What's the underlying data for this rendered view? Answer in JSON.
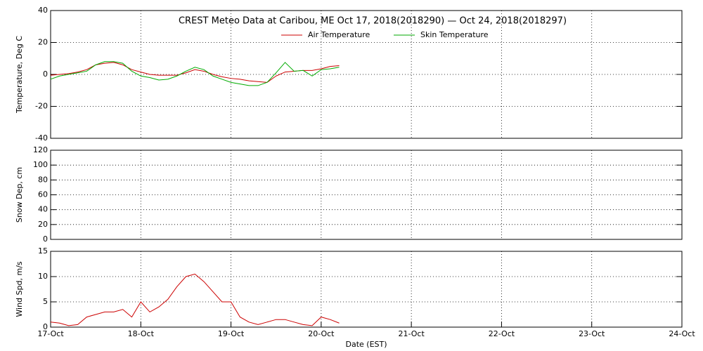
{
  "chart_data": [
    {
      "type": "line",
      "title": "CREST Meteo Data at Caribou, ME   Oct 17, 2018(2018290) — Oct 24, 2018(2018297)",
      "y_label": "Temperature, Deg C",
      "xlim": [
        0,
        7
      ],
      "xticks": [
        0,
        1,
        2,
        3,
        4,
        5,
        6,
        7
      ],
      "ylim": [
        -40,
        40
      ],
      "yticks": [
        -40,
        -20,
        0,
        20,
        40
      ],
      "grid": true,
      "x": [
        0,
        0.1,
        0.2,
        0.3,
        0.4,
        0.5,
        0.6,
        0.7,
        0.8,
        0.9,
        1.0,
        1.1,
        1.2,
        1.3,
        1.4,
        1.5,
        1.6,
        1.7,
        1.8,
        1.9,
        2.0,
        2.1,
        2.2,
        2.3,
        2.4,
        2.5,
        2.6,
        2.7,
        2.8,
        2.9,
        3.0,
        3.1,
        3.2
      ],
      "series": [
        {
          "name": "Air Temperature",
          "color": "#cc0000",
          "values": [
            -0.5,
            0,
            0.5,
            1.5,
            3,
            6,
            7,
            7.5,
            6,
            3,
            1.5,
            0,
            -0.5,
            -0.5,
            -0.5,
            1,
            3,
            2,
            0,
            -1.5,
            -2.5,
            -3,
            -4,
            -4.5,
            -5,
            -1,
            1.5,
            2,
            2.5,
            2.5,
            3.5,
            5,
            5.5
          ]
        },
        {
          "name": "Skin Temperature",
          "color": "#00aa00",
          "values": [
            -3,
            -1,
            0,
            1,
            2,
            6,
            8,
            8,
            7,
            2,
            -1,
            -2,
            -3.5,
            -3,
            -1,
            2,
            4.5,
            3,
            -1,
            -3,
            -5,
            -6,
            -7,
            -7,
            -5,
            1,
            7.5,
            2,
            2.5,
            -1,
            3,
            3.5,
            4.5
          ]
        }
      ]
    },
    {
      "type": "line",
      "y_label": "Snow Dep, cm",
      "xlim": [
        0,
        7
      ],
      "xticks": [
        0,
        1,
        2,
        3,
        4,
        5,
        6,
        7
      ],
      "ylim": [
        0,
        120
      ],
      "yticks": [
        0,
        20,
        40,
        60,
        80,
        100,
        120
      ],
      "grid": true,
      "x": [],
      "series": []
    },
    {
      "type": "line",
      "y_label": "Wind Spd, m/s",
      "x_label": "Date (EST)",
      "xlim": [
        0,
        7
      ],
      "xticks": [
        {
          "value": 0,
          "label": "17-Oct"
        },
        {
          "value": 1,
          "label": "18-Oct"
        },
        {
          "value": 2,
          "label": "19-Oct"
        },
        {
          "value": 3,
          "label": "20-Oct"
        },
        {
          "value": 4,
          "label": "21-Oct"
        },
        {
          "value": 5,
          "label": "22-Oct"
        },
        {
          "value": 6,
          "label": "23-Oct"
        },
        {
          "value": 7,
          "label": "24-Oct"
        }
      ],
      "ylim": [
        0,
        15
      ],
      "yticks": [
        0,
        5,
        10,
        15
      ],
      "grid": true,
      "x": [
        0,
        0.1,
        0.2,
        0.3,
        0.4,
        0.5,
        0.6,
        0.7,
        0.8,
        0.9,
        1.0,
        1.1,
        1.2,
        1.3,
        1.4,
        1.5,
        1.6,
        1.7,
        1.8,
        1.9,
        2.0,
        2.1,
        2.2,
        2.3,
        2.4,
        2.5,
        2.6,
        2.7,
        2.8,
        2.9,
        3.0,
        3.1,
        3.2
      ],
      "series": [
        {
          "color": "#cc0000",
          "values": [
            1,
            0.8,
            0.3,
            0.5,
            2,
            2.5,
            3,
            3,
            3.5,
            2,
            5,
            3,
            4,
            5.5,
            8,
            10,
            10.5,
            9,
            7,
            5,
            5,
            2,
            1,
            0.5,
            1,
            1.5,
            1.5,
            1,
            0.5,
            0.3,
            2,
            1.5,
            0.8
          ]
        }
      ]
    }
  ]
}
